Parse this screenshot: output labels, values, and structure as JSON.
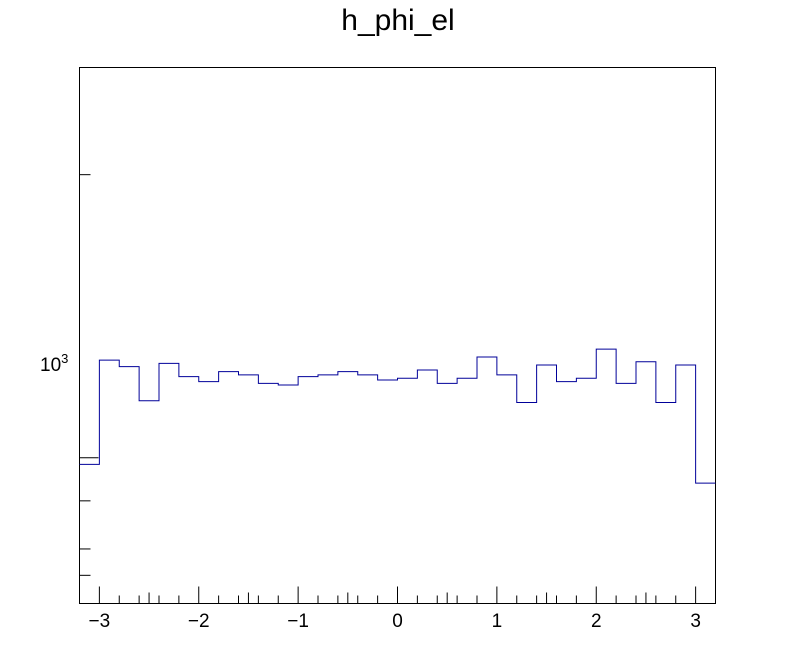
{
  "chart_data": {
    "type": "histogram",
    "title": "h_phi_el",
    "xlabel": "",
    "ylabel": "",
    "xlim": [
      -3.2,
      3.2
    ],
    "ylog": true,
    "ylim": [
      700,
      2600
    ],
    "x_ticks": [
      -3,
      -2,
      -1,
      0,
      1,
      2,
      3
    ],
    "x_tick_labels": [
      "−3",
      "−2",
      "−1",
      "0",
      "1",
      "2",
      "3"
    ],
    "y_tick_label": {
      "base": "10",
      "exponent": "3",
      "value": 1000
    },
    "line_color": "#000099",
    "bin_edges": [
      -3.2,
      -3.0,
      -2.8,
      -2.6,
      -2.4,
      -2.2,
      -2.0,
      -1.8,
      -1.6,
      -1.4,
      -1.2,
      -1.0,
      -0.8,
      -0.6,
      -0.4,
      -0.2,
      0.0,
      0.2,
      0.4,
      0.6,
      0.8,
      1.0,
      1.2,
      1.4,
      1.6,
      1.8,
      2.0,
      2.2,
      2.4,
      2.6,
      2.8,
      3.0,
      3.2
    ],
    "values": [
      984,
      1270,
      1250,
      1150,
      1260,
      1220,
      1205,
      1235,
      1225,
      1200,
      1195,
      1220,
      1225,
      1235,
      1225,
      1210,
      1215,
      1240,
      1200,
      1215,
      1280,
      1225,
      1145,
      1255,
      1205,
      1215,
      1305,
      1200,
      1265,
      1145,
      1255,
      940
    ]
  }
}
